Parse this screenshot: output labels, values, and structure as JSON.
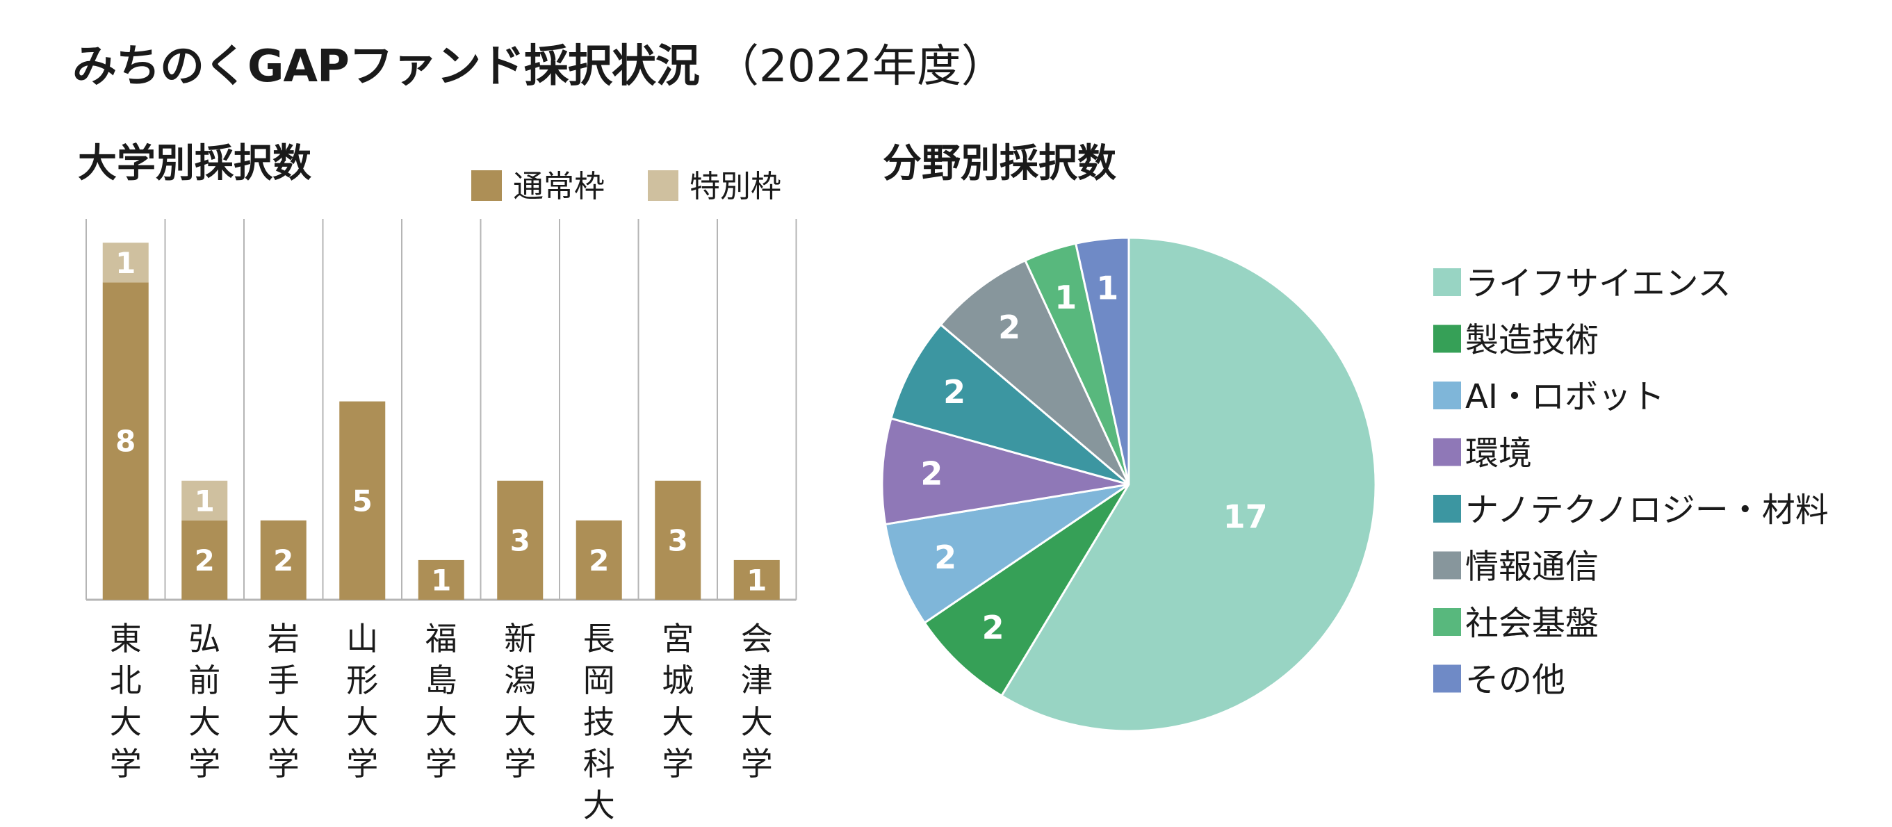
{
  "title": "みちのくGAPファンド採択状況",
  "subtitle": "（2022年度）",
  "colors": {
    "regular": "#ad8f56",
    "special": "#cfc09f",
    "grid": "#b5b5b5"
  },
  "chart_data": [
    {
      "type": "bar",
      "stacked": true,
      "title": "大学別採択数",
      "legend_placement": "top-right",
      "categories": [
        "東北大学",
        "弘前大学",
        "岩手大学",
        "山形大学",
        "福島大学",
        "新潟大学",
        "長岡技科大学",
        "宮城大学",
        "会津大学"
      ],
      "series": [
        {
          "name": "通常枠",
          "color": "#ad8f56",
          "values": [
            8,
            2,
            2,
            5,
            1,
            3,
            2,
            3,
            1
          ]
        },
        {
          "name": "特別枠",
          "color": "#cfc09f",
          "values": [
            1,
            1,
            0,
            0,
            0,
            0,
            0,
            0,
            0
          ]
        }
      ],
      "ylim": [
        0,
        9.6
      ],
      "grid": "vertical-separators"
    },
    {
      "type": "pie",
      "title": "分野別採択数",
      "legend_placement": "right",
      "slices": [
        {
          "label": "ライフサイエンス",
          "value": 17,
          "color": "#98d4c3"
        },
        {
          "label": "製造技術",
          "value": 2,
          "color": "#36a057"
        },
        {
          "label": "AI・ロボット",
          "value": 2,
          "color": "#7fb6d9"
        },
        {
          "label": "環境",
          "value": 2,
          "color": "#8f78b7"
        },
        {
          "label": "ナノテクノロジー・材料",
          "value": 2,
          "color": "#3c96a1"
        },
        {
          "label": "情報通信",
          "value": 2,
          "color": "#87969c"
        },
        {
          "label": "社会基盤",
          "value": 1,
          "color": "#58b87d"
        },
        {
          "label": "その他",
          "value": 1,
          "color": "#6f8ac6"
        }
      ]
    }
  ]
}
